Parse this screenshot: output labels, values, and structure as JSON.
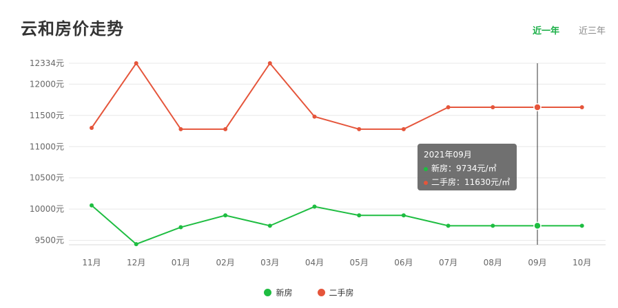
{
  "header": {
    "title": "云和房价走势",
    "tabs": [
      {
        "label": "近一年",
        "active": true
      },
      {
        "label": "近三年",
        "active": false
      }
    ]
  },
  "tooltip": {
    "title": "2021年09月",
    "new_line": "新房：9734元/㎡",
    "second_line": "二手房：11630元/㎡"
  },
  "legend": {
    "new": "新房",
    "second": "二手房"
  },
  "colors": {
    "new": "#1ebd41",
    "second": "#e5553b",
    "accent": "#1aaf47"
  },
  "chart_data": {
    "type": "line",
    "categories": [
      "11月",
      "12月",
      "01月",
      "02月",
      "03月",
      "04月",
      "05月",
      "06月",
      "07月",
      "08月",
      "09月",
      "10月"
    ],
    "series": [
      {
        "name": "新房",
        "values": [
          10060,
          9440,
          9710,
          9900,
          9734,
          10040,
          9900,
          9900,
          9734,
          9734,
          9734,
          9734
        ]
      },
      {
        "name": "二手房",
        "values": [
          11300,
          12334,
          11280,
          11280,
          12334,
          11480,
          11280,
          11280,
          11630,
          11630,
          11630,
          11630
        ]
      }
    ],
    "y_ticks": [
      "12334元",
      "12000元",
      "11500元",
      "11000元",
      "10500元",
      "10000元",
      "9500元"
    ],
    "y_tick_values": [
      12334,
      12000,
      11500,
      11000,
      10500,
      10000,
      9500
    ],
    "ylim": [
      9430,
      12334
    ],
    "highlight_category": "09月",
    "legend_position": "bottom"
  }
}
